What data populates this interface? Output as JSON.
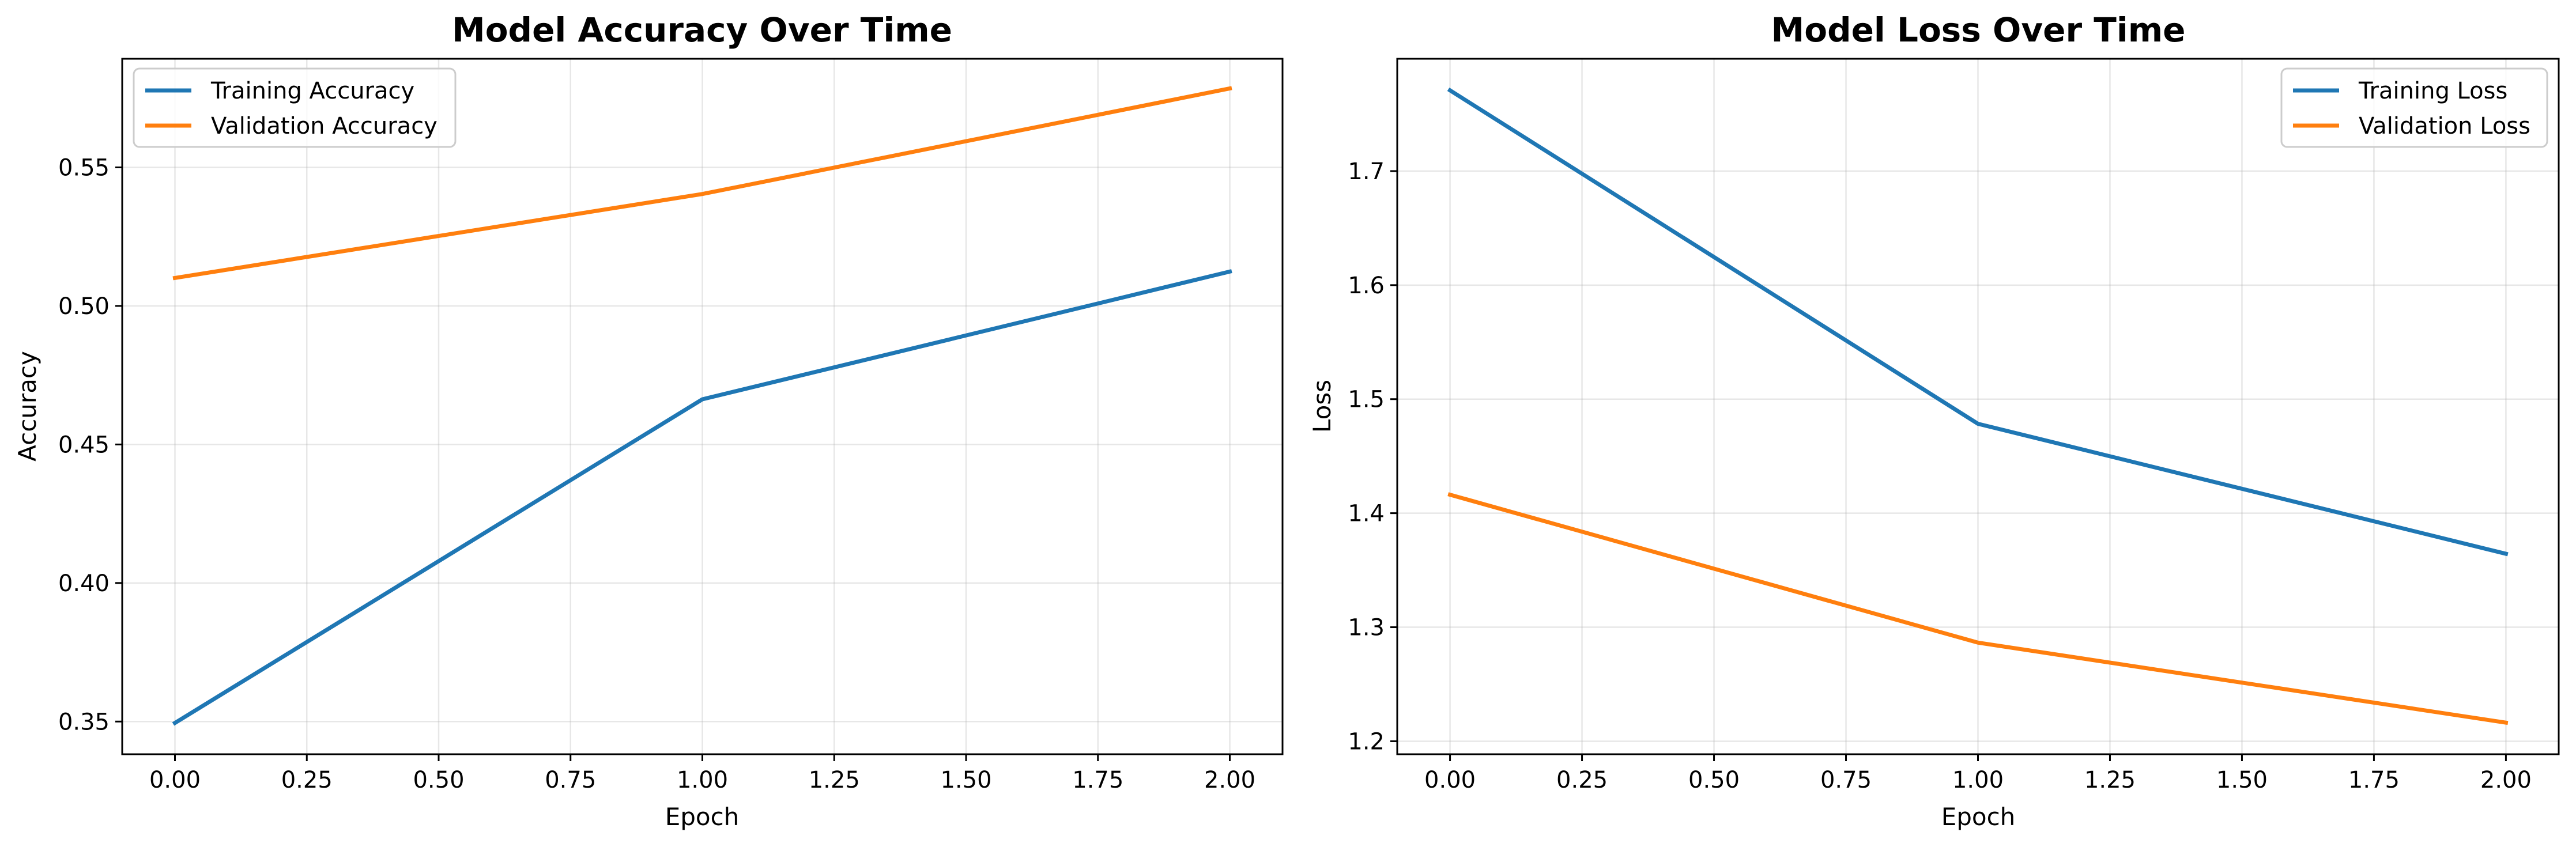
{
  "chart_data": [
    {
      "type": "line",
      "title": "Model Accuracy Over Time",
      "xlabel": "Epoch",
      "ylabel": "Accuracy",
      "x": [
        0,
        1,
        2
      ],
      "xlim": [
        -0.1,
        2.1
      ],
      "ylim": [
        0.3382,
        0.5892
      ],
      "xticks": [
        0.0,
        0.25,
        0.5,
        0.75,
        1.0,
        1.25,
        1.5,
        1.75,
        2.0
      ],
      "xtick_labels": [
        "0.00",
        "0.25",
        "0.50",
        "0.75",
        "1.00",
        "1.25",
        "1.50",
        "1.75",
        "2.00"
      ],
      "yticks": [
        0.35,
        0.4,
        0.45,
        0.5,
        0.55
      ],
      "ytick_labels": [
        "0.35",
        "0.40",
        "0.45",
        "0.50",
        "0.55"
      ],
      "grid": true,
      "legend_position": "top-left",
      "series": [
        {
          "name": "Training Accuracy",
          "color": "#1f77b4",
          "values": [
            0.3495,
            0.4663,
            0.5124
          ]
        },
        {
          "name": "Validation Accuracy",
          "color": "#ff7f0e",
          "values": [
            0.5101,
            0.5404,
            0.5785
          ]
        }
      ]
    },
    {
      "type": "line",
      "title": "Model Loss Over Time",
      "xlabel": "Epoch",
      "ylabel": "Loss",
      "x": [
        0,
        1,
        2
      ],
      "xlim": [
        -0.1,
        2.1
      ],
      "ylim": [
        1.1886,
        1.7985
      ],
      "xticks": [
        0.0,
        0.25,
        0.5,
        0.75,
        1.0,
        1.25,
        1.5,
        1.75,
        2.0
      ],
      "xtick_labels": [
        "0.00",
        "0.25",
        "0.50",
        "0.75",
        "1.00",
        "1.25",
        "1.50",
        "1.75",
        "2.00"
      ],
      "yticks": [
        1.2,
        1.3,
        1.4,
        1.5,
        1.6,
        1.7
      ],
      "ytick_labels": [
        "1.2",
        "1.3",
        "1.4",
        "1.5",
        "1.6",
        "1.7"
      ],
      "grid": true,
      "legend_position": "top-right",
      "series": [
        {
          "name": "Training Loss",
          "color": "#1f77b4",
          "values": [
            1.7708,
            1.4784,
            1.3644
          ]
        },
        {
          "name": "Validation Loss",
          "color": "#ff7f0e",
          "values": [
            1.4162,
            1.2865,
            1.2163
          ]
        }
      ]
    }
  ]
}
